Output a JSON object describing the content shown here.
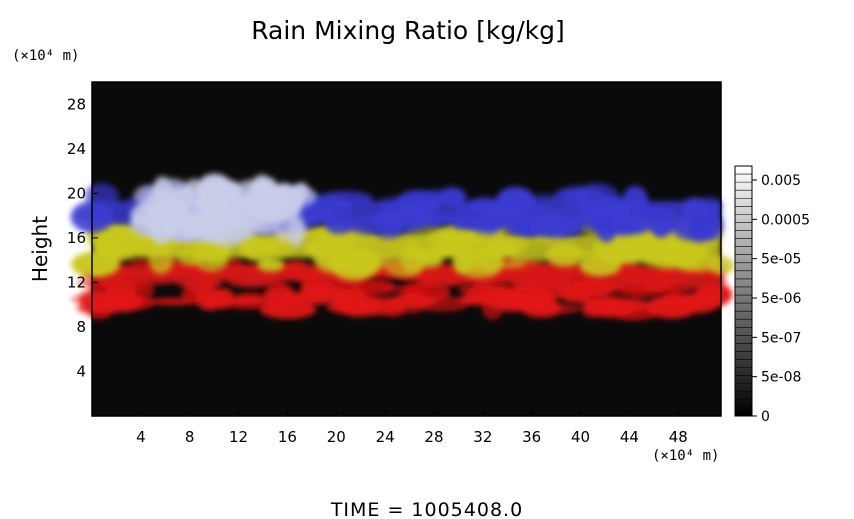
{
  "chart_data": {
    "type": "heatmap",
    "title": "Rain Mixing Ratio [kg/kg]",
    "ylabel": "Height",
    "x_unit": "(×10⁴ m)",
    "y_unit": "(×10⁴ m)",
    "xlim": [
      0,
      51.5
    ],
    "ylim": [
      0,
      30
    ],
    "x_ticks": [
      4,
      8,
      12,
      16,
      20,
      24,
      28,
      32,
      36,
      40,
      44,
      48
    ],
    "y_ticks": [
      4,
      8,
      12,
      16,
      20,
      24,
      28
    ],
    "background_color": "#0a0a0a",
    "layers": [
      {
        "color": "#e21414",
        "x": [
          0,
          51.5
        ],
        "y_bottom": 9.5,
        "y_top": 12.0,
        "coverage": "patchy"
      },
      {
        "color": "#d81616",
        "x": [
          0,
          51.5
        ],
        "y_bottom": 12.0,
        "y_top": 14.0,
        "coverage": "band"
      },
      {
        "color": "#c8c81e",
        "x": [
          0,
          51.5
        ],
        "y_bottom": 13.5,
        "y_top": 17.0,
        "coverage": "band"
      },
      {
        "color": "#3a3ad2",
        "x": [
          0,
          51.5
        ],
        "y_bottom": 16.5,
        "y_top": 20.0,
        "coverage": "band"
      },
      {
        "color": "#c8cce8",
        "x": [
          4.5,
          17.5
        ],
        "y_bottom": 16.5,
        "y_top": 20.5,
        "coverage": "cloud"
      }
    ],
    "colorbar": {
      "labels": [
        "0.005",
        "0.0005",
        "5e-05",
        "5e-06",
        "5e-07",
        "5e-08",
        "0"
      ]
    },
    "footer": "TIME  =  1005408.0"
  }
}
